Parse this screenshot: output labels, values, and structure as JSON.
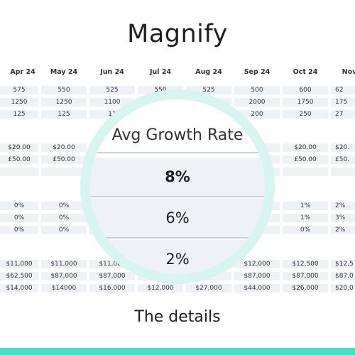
{
  "title": "Magnify",
  "subtitle": "The details",
  "colors": {
    "accent": "#46e0c8",
    "lens_ring": "#d6f5ee",
    "cell_bg": "#eef2f6"
  },
  "sheet": {
    "months": [
      "Apr 24",
      "May 24",
      "Jun 24",
      "Jul 24",
      "Aug 24",
      "Sep 24",
      "Oct 24",
      "Nov"
    ],
    "rows": [
      [
        "575",
        "550",
        "525",
        "550",
        "525",
        "500",
        "600",
        "62"
      ],
      [
        "1250",
        "1250",
        "1100",
        "",
        "",
        "2000",
        "1750",
        "175"
      ],
      [
        "125",
        "125",
        "11",
        "",
        "",
        "200",
        "250",
        "27"
      ],
      null,
      [
        "$20.00",
        "$20.00",
        "",
        "",
        "",
        "",
        "$20.00",
        "$20."
      ],
      [
        "£50.00",
        "£50.00",
        "",
        "",
        "",
        "",
        "£50.00",
        "£50."
      ],
      [
        "",
        "",
        "",
        "",
        "",
        "",
        "",
        ""
      ],
      null,
      [
        "0%",
        "0%",
        "",
        "",
        "",
        "",
        "1%",
        "2%"
      ],
      [
        "0%",
        "0%",
        "",
        "",
        "",
        "",
        "1%",
        "3%"
      ],
      [
        "0%",
        "0%",
        "",
        "",
        "",
        "",
        "0%",
        "2%"
      ],
      null,
      [
        "$11,000",
        "$11,000",
        "$11,000",
        "",
        "",
        "$12,000",
        "$12,500",
        "$12,5"
      ],
      [
        "$62,500",
        "$87,000",
        "$87,000",
        "",
        "",
        "$87,000",
        "$87,000",
        "$87,0"
      ],
      [
        "$14,000",
        "$14000",
        "$16,000",
        "$12,000",
        "$27,000",
        "$44,000",
        "$26,000",
        "$20,0"
      ]
    ]
  },
  "lens": {
    "header": "Avg Growth Rate",
    "values": [
      "8%",
      "6%",
      "2%"
    ]
  }
}
